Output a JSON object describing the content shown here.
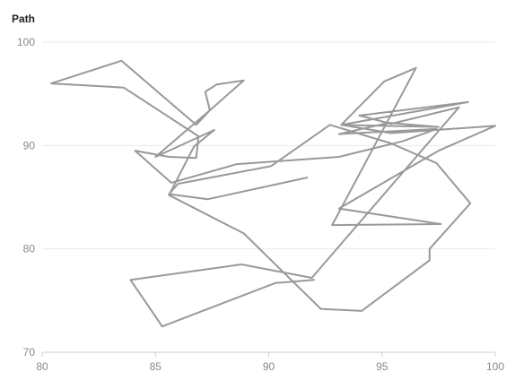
{
  "chart_data": {
    "type": "line",
    "title": "Path",
    "xlabel": "",
    "ylabel": "",
    "xlim": [
      80,
      100
    ],
    "ylim": [
      70,
      100
    ],
    "x_ticks": [
      80,
      85,
      90,
      95,
      100
    ],
    "y_ticks": [
      70,
      80,
      90,
      100
    ],
    "grid": "horizontal",
    "legend": "none",
    "series_color": "#999999",
    "series": [
      {
        "points": [
          [
            91.7,
            86.9
          ],
          [
            87.3,
            84.8
          ],
          [
            85.6,
            85.3
          ],
          [
            86.0,
            86.3
          ],
          [
            90.1,
            88.0
          ],
          [
            92.7,
            92.0
          ],
          [
            95.4,
            90.2
          ],
          [
            97.4,
            88.3
          ],
          [
            98.9,
            84.4
          ],
          [
            97.1,
            80.0
          ],
          [
            97.1,
            78.9
          ],
          [
            94.1,
            74.0
          ],
          [
            92.3,
            74.2
          ],
          [
            90.2,
            78.7
          ],
          [
            88.9,
            81.5
          ],
          [
            85.6,
            85.2
          ],
          [
            86.7,
            89.9
          ],
          [
            87.6,
            91.5
          ],
          [
            85.0,
            88.9
          ],
          [
            87.4,
            93.4
          ],
          [
            87.2,
            95.2
          ],
          [
            87.7,
            95.9
          ],
          [
            88.9,
            96.3
          ],
          [
            87.4,
            93.4
          ],
          [
            86.8,
            92.0
          ],
          [
            83.5,
            98.2
          ],
          [
            80.4,
            96.0
          ],
          [
            82.0,
            95.8
          ],
          [
            83.6,
            95.6
          ],
          [
            86.9,
            90.9
          ],
          [
            86.8,
            88.8
          ],
          [
            85.6,
            88.9
          ],
          [
            84.1,
            89.5
          ],
          [
            85.7,
            86.4
          ],
          [
            88.6,
            88.2
          ],
          [
            93.1,
            88.9
          ],
          [
            95.9,
            90.4
          ],
          [
            97.4,
            91.6
          ],
          [
            93.1,
            91.1
          ],
          [
            95.3,
            92.2
          ],
          [
            97.5,
            91.8
          ],
          [
            93.2,
            92.0
          ],
          [
            95.1,
            96.2
          ],
          [
            96.5,
            97.5
          ],
          [
            92.8,
            82.3
          ],
          [
            97.6,
            82.4
          ],
          [
            93.1,
            83.9
          ],
          [
            97.5,
            89.5
          ],
          [
            100.0,
            91.9
          ],
          [
            95.4,
            91.2
          ],
          [
            93.2,
            92.0
          ],
          [
            98.8,
            94.2
          ],
          [
            94.0,
            92.9
          ],
          [
            95.4,
            92.1
          ],
          [
            98.4,
            93.7
          ],
          [
            91.9,
            77.2
          ],
          [
            88.8,
            78.5
          ],
          [
            83.9,
            77.0
          ],
          [
            85.3,
            72.5
          ],
          [
            90.3,
            76.7
          ],
          [
            92.0,
            77.0
          ]
        ]
      }
    ]
  }
}
